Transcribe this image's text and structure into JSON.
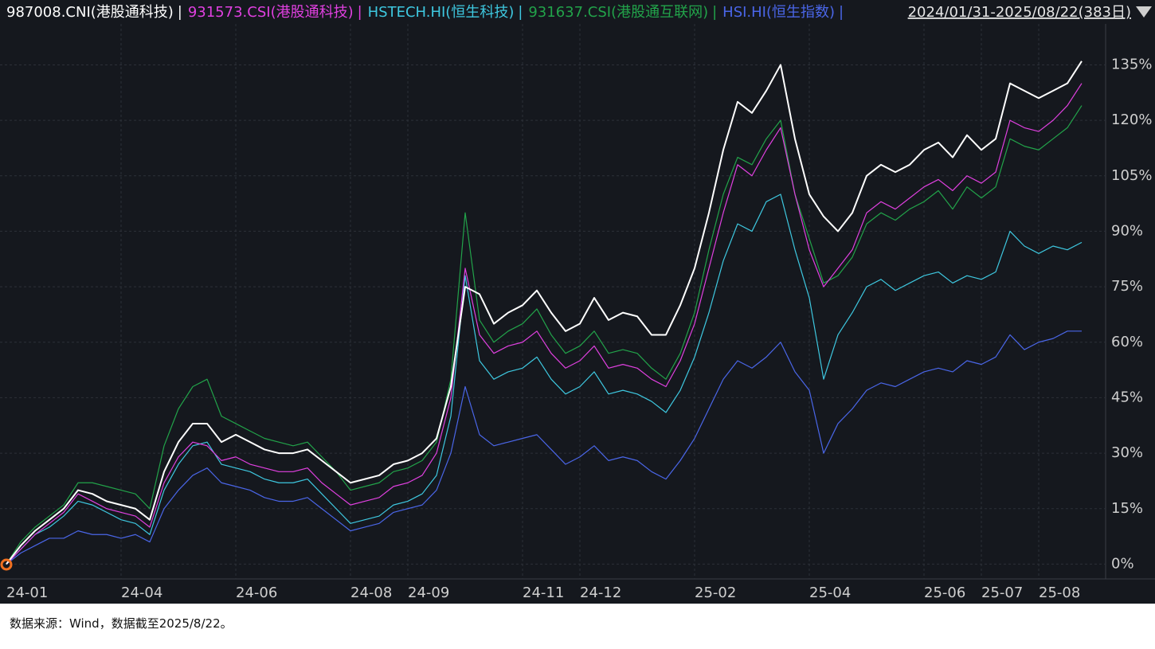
{
  "chart_data": {
    "type": "line",
    "date_range": "2024/01/31-2025/08/22(383日)",
    "note": "数据来源：Wind，数据截至2025/8/22。",
    "categories": [
      "24-01",
      null,
      null,
      null,
      null,
      null,
      null,
      null,
      "24-04",
      null,
      null,
      null,
      null,
      null,
      null,
      null,
      "24-06",
      null,
      null,
      null,
      null,
      null,
      null,
      null,
      "24-08",
      null,
      null,
      null,
      "24-09",
      null,
      null,
      null,
      null,
      null,
      null,
      null,
      "24-11",
      null,
      null,
      null,
      "24-12",
      null,
      null,
      null,
      null,
      null,
      null,
      null,
      "25-02",
      null,
      null,
      null,
      null,
      null,
      null,
      null,
      "25-04",
      null,
      null,
      null,
      null,
      null,
      null,
      null,
      "25-06",
      null,
      null,
      null,
      "25-07",
      null,
      null,
      null,
      "25-08",
      null,
      null,
      null
    ],
    "series": [
      {
        "name": "987008.CNI(港股通科技)",
        "color": "#ffffff",
        "values": [
          0,
          5,
          9,
          12,
          15,
          20,
          19,
          17,
          16,
          15,
          12,
          25,
          33,
          38,
          38,
          33,
          35,
          33,
          31,
          30,
          30,
          31,
          28,
          25,
          22,
          23,
          24,
          27,
          28,
          30,
          34,
          48,
          75,
          73,
          65,
          68,
          70,
          74,
          68,
          63,
          65,
          72,
          66,
          68,
          67,
          62,
          62,
          70,
          80,
          95,
          112,
          125,
          122,
          128,
          135,
          115,
          100,
          94,
          90,
          95,
          105,
          108,
          106,
          108,
          112,
          114,
          110,
          116,
          112,
          115,
          130,
          128,
          126,
          128,
          130,
          136
        ]
      },
      {
        "name": "931573.CSI(港股通科技)",
        "color": "#e040e0",
        "values": [
          0,
          4,
          8,
          11,
          14,
          19,
          17,
          15,
          14,
          13,
          10,
          22,
          29,
          33,
          32,
          28,
          29,
          27,
          26,
          25,
          25,
          26,
          22,
          19,
          16,
          17,
          18,
          21,
          22,
          24,
          30,
          45,
          80,
          62,
          57,
          59,
          60,
          63,
          57,
          53,
          55,
          59,
          53,
          54,
          53,
          50,
          48,
          55,
          65,
          80,
          95,
          108,
          105,
          112,
          118,
          100,
          85,
          75,
          80,
          85,
          95,
          98,
          96,
          99,
          102,
          104,
          101,
          105,
          103,
          106,
          120,
          118,
          117,
          120,
          124,
          130
        ]
      },
      {
        "name": "HSTECH.HI(恒生科技)",
        "color": "#3ec8e0",
        "values": [
          0,
          4,
          8,
          10,
          13,
          17,
          16,
          14,
          12,
          11,
          8,
          20,
          27,
          32,
          33,
          27,
          26,
          25,
          23,
          22,
          22,
          23,
          19,
          15,
          11,
          12,
          13,
          16,
          17,
          19,
          24,
          40,
          78,
          55,
          50,
          52,
          53,
          56,
          50,
          46,
          48,
          52,
          46,
          47,
          46,
          44,
          41,
          47,
          56,
          68,
          82,
          92,
          90,
          98,
          100,
          85,
          72,
          50,
          62,
          68,
          75,
          77,
          74,
          76,
          78,
          79,
          76,
          78,
          77,
          79,
          90,
          86,
          84,
          86,
          85,
          87
        ]
      },
      {
        "name": "931637.CSI(港股通互联网)",
        "color": "#22a34a",
        "values": [
          0,
          6,
          10,
          13,
          16,
          22,
          22,
          21,
          20,
          19,
          15,
          32,
          42,
          48,
          50,
          40,
          38,
          36,
          34,
          33,
          32,
          33,
          29,
          25,
          20,
          21,
          22,
          25,
          26,
          28,
          33,
          50,
          95,
          66,
          60,
          63,
          65,
          69,
          62,
          57,
          59,
          63,
          57,
          58,
          57,
          53,
          50,
          57,
          68,
          85,
          100,
          110,
          108,
          115,
          120,
          100,
          88,
          76,
          78,
          83,
          92,
          95,
          93,
          96,
          98,
          101,
          96,
          102,
          99,
          102,
          115,
          113,
          112,
          115,
          118,
          124
        ]
      },
      {
        "name": "HSI.HI(恒生指数)",
        "color": "#4a66e8",
        "values": [
          0,
          3,
          5,
          7,
          7,
          9,
          8,
          8,
          7,
          8,
          6,
          15,
          20,
          24,
          26,
          22,
          21,
          20,
          18,
          17,
          17,
          18,
          15,
          12,
          9,
          10,
          11,
          14,
          15,
          16,
          20,
          30,
          48,
          35,
          32,
          33,
          34,
          35,
          31,
          27,
          29,
          32,
          28,
          29,
          28,
          25,
          23,
          28,
          34,
          42,
          50,
          55,
          53,
          56,
          60,
          52,
          47,
          30,
          38,
          42,
          47,
          49,
          48,
          50,
          52,
          53,
          52,
          55,
          54,
          56,
          62,
          58,
          60,
          61,
          63,
          63
        ]
      }
    ],
    "ylim": [
      -4,
      145
    ],
    "yticks": [
      {
        "value": 0,
        "label": "0%"
      },
      {
        "value": 15,
        "label": "15%"
      },
      {
        "value": 30,
        "label": "30%"
      },
      {
        "value": 45,
        "label": "45%"
      },
      {
        "value": 60,
        "label": "60%"
      },
      {
        "value": 75,
        "label": "75%"
      },
      {
        "value": 90,
        "label": "90%"
      },
      {
        "value": 105,
        "label": "105%"
      },
      {
        "value": 120,
        "label": "120%"
      },
      {
        "value": 135,
        "label": "135%"
      }
    ],
    "grid": true
  }
}
